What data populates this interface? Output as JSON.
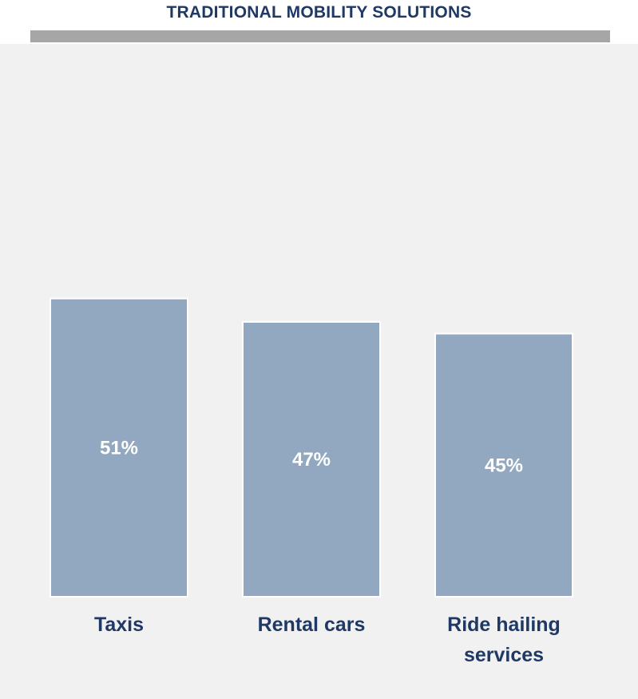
{
  "header": {
    "title": "TRADITIONAL MOBILITY SOLUTIONS"
  },
  "colors": {
    "title": "#1f3864",
    "title_bar": "#a6a6a6",
    "panel_background": "#f1f1f1",
    "bar_fill": "#92a8c1",
    "bar_label": "#ffffff",
    "category_label": "#1f3864"
  },
  "chart_data": {
    "type": "bar",
    "title": "TRADITIONAL MOBILITY SOLUTIONS",
    "categories": [
      "Taxis",
      "Rental cars",
      "Ride hailing services"
    ],
    "category_lines": [
      [
        "Taxis"
      ],
      [
        "Rental cars"
      ],
      [
        "Ride hailing",
        "services"
      ]
    ],
    "values": [
      51,
      47,
      45
    ],
    "value_labels": [
      "51%",
      "47%",
      "45%"
    ],
    "unit": "%",
    "xlabel": "",
    "ylabel": "",
    "ylim": [
      0,
      100
    ],
    "grid": false,
    "legend": "none"
  }
}
